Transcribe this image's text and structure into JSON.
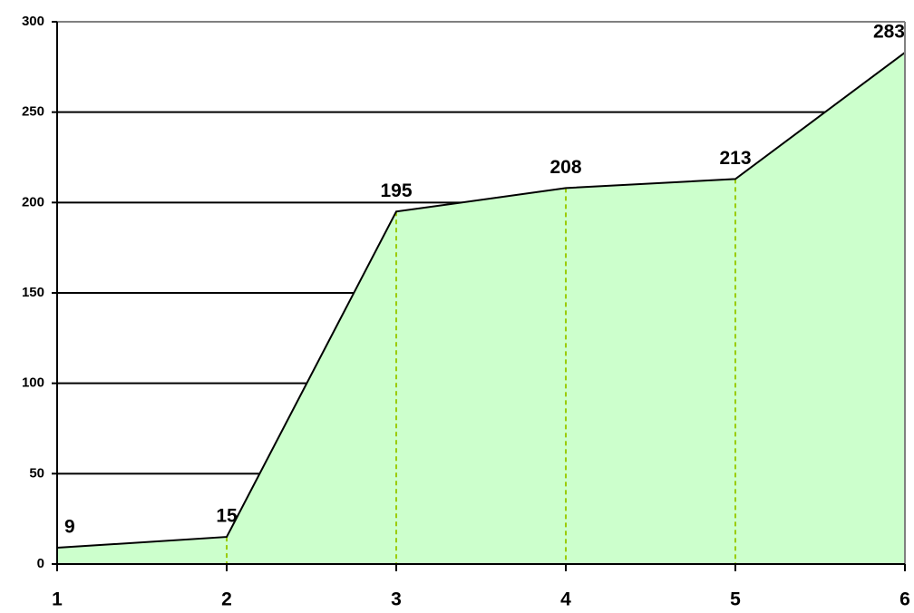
{
  "chart_data": {
    "type": "area",
    "x": [
      1,
      2,
      3,
      4,
      5,
      6
    ],
    "values": [
      9,
      15,
      195,
      208,
      213,
      283
    ],
    "color": "#ccffcc",
    "line_color": "#000000",
    "drop_line_color": "#99cc00",
    "xlim": [
      1,
      6
    ],
    "xticks": [
      1,
      2,
      3,
      4,
      5,
      6
    ],
    "ylim": [
      0,
      300
    ],
    "yticks": [
      0,
      50,
      100,
      150,
      200,
      250,
      300
    ],
    "grid": true
  }
}
